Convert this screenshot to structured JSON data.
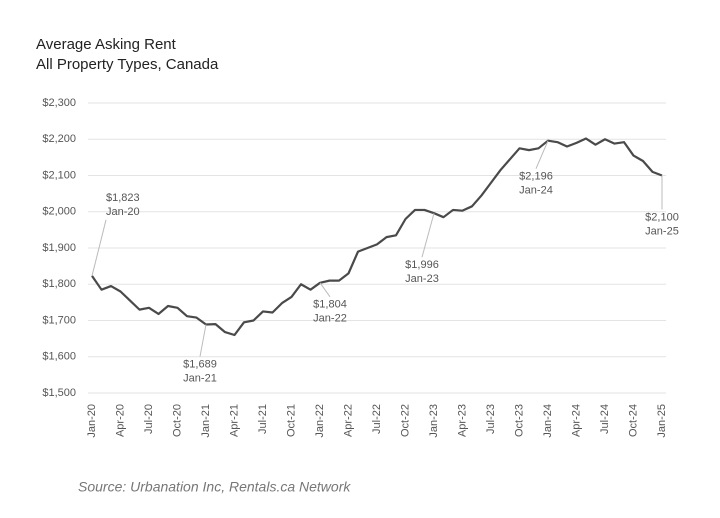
{
  "chart_data": {
    "type": "line",
    "title": "Average Asking Rent",
    "subtitle": "All Property Types, Canada",
    "source": "Source: Urbanation Inc, Rentals.ca Network",
    "categories": [
      "Jan-20",
      null,
      null,
      "Apr-20",
      null,
      null,
      "Jul-20",
      null,
      null,
      "Oct-20",
      null,
      null,
      "Jan-21",
      null,
      null,
      "Apr-21",
      null,
      null,
      "Jul-21",
      null,
      null,
      "Oct-21",
      null,
      null,
      "Jan-22",
      null,
      null,
      "Apr-22",
      null,
      null,
      "Jul-22",
      null,
      null,
      "Oct-22",
      null,
      null,
      "Jan-23",
      null,
      null,
      "Apr-23",
      null,
      null,
      "Jul-23",
      null,
      null,
      "Oct-23",
      null,
      null,
      "Jan-24",
      null,
      null,
      "Apr-24",
      null,
      null,
      "Jul-24",
      null,
      null,
      "Oct-24",
      null,
      null,
      "Jan-25"
    ],
    "series": [
      {
        "name": "Average Asking Rent",
        "color": "#4a4a4a",
        "values": [
          1823,
          1785,
          1795,
          1780,
          1755,
          1730,
          1735,
          1718,
          1740,
          1735,
          1712,
          1708,
          1689,
          1690,
          1668,
          1660,
          1695,
          1700,
          1725,
          1722,
          1748,
          1765,
          1800,
          1785,
          1804,
          1810,
          1810,
          1830,
          1890,
          1900,
          1910,
          1930,
          1935,
          1980,
          2005,
          2005,
          1996,
          1985,
          2005,
          2003,
          2015,
          2045,
          2080,
          2115,
          2145,
          2175,
          2170,
          2175,
          2196,
          2192,
          2180,
          2190,
          2202,
          2185,
          2200,
          2188,
          2192,
          2155,
          2140,
          2110,
          2100
        ]
      }
    ],
    "annotations": [
      {
        "text": "$1,823",
        "date": "Jan-20"
      },
      {
        "text": "$1,689",
        "date": "Jan-21"
      },
      {
        "text": "$1,804",
        "date": "Jan-22"
      },
      {
        "text": "$1,996",
        "date": "Jan-23"
      },
      {
        "text": "$2,196",
        "date": "Jan-24"
      },
      {
        "text": "$2,100",
        "date": "Jan-25"
      }
    ],
    "ylim": [
      1500,
      2300
    ],
    "yticks": [
      {
        "value": 1500,
        "label": "$1,500"
      },
      {
        "value": 1600,
        "label": "$1,600"
      },
      {
        "value": 1700,
        "label": "$1,700"
      },
      {
        "value": 1800,
        "label": "$1,800"
      },
      {
        "value": 1900,
        "label": "$1,900"
      },
      {
        "value": 2000,
        "label": "$2,000"
      },
      {
        "value": 2100,
        "label": "$2,100"
      },
      {
        "value": 2200,
        "label": "$2,200"
      },
      {
        "value": 2300,
        "label": "$2,300"
      }
    ],
    "grid": true
  }
}
